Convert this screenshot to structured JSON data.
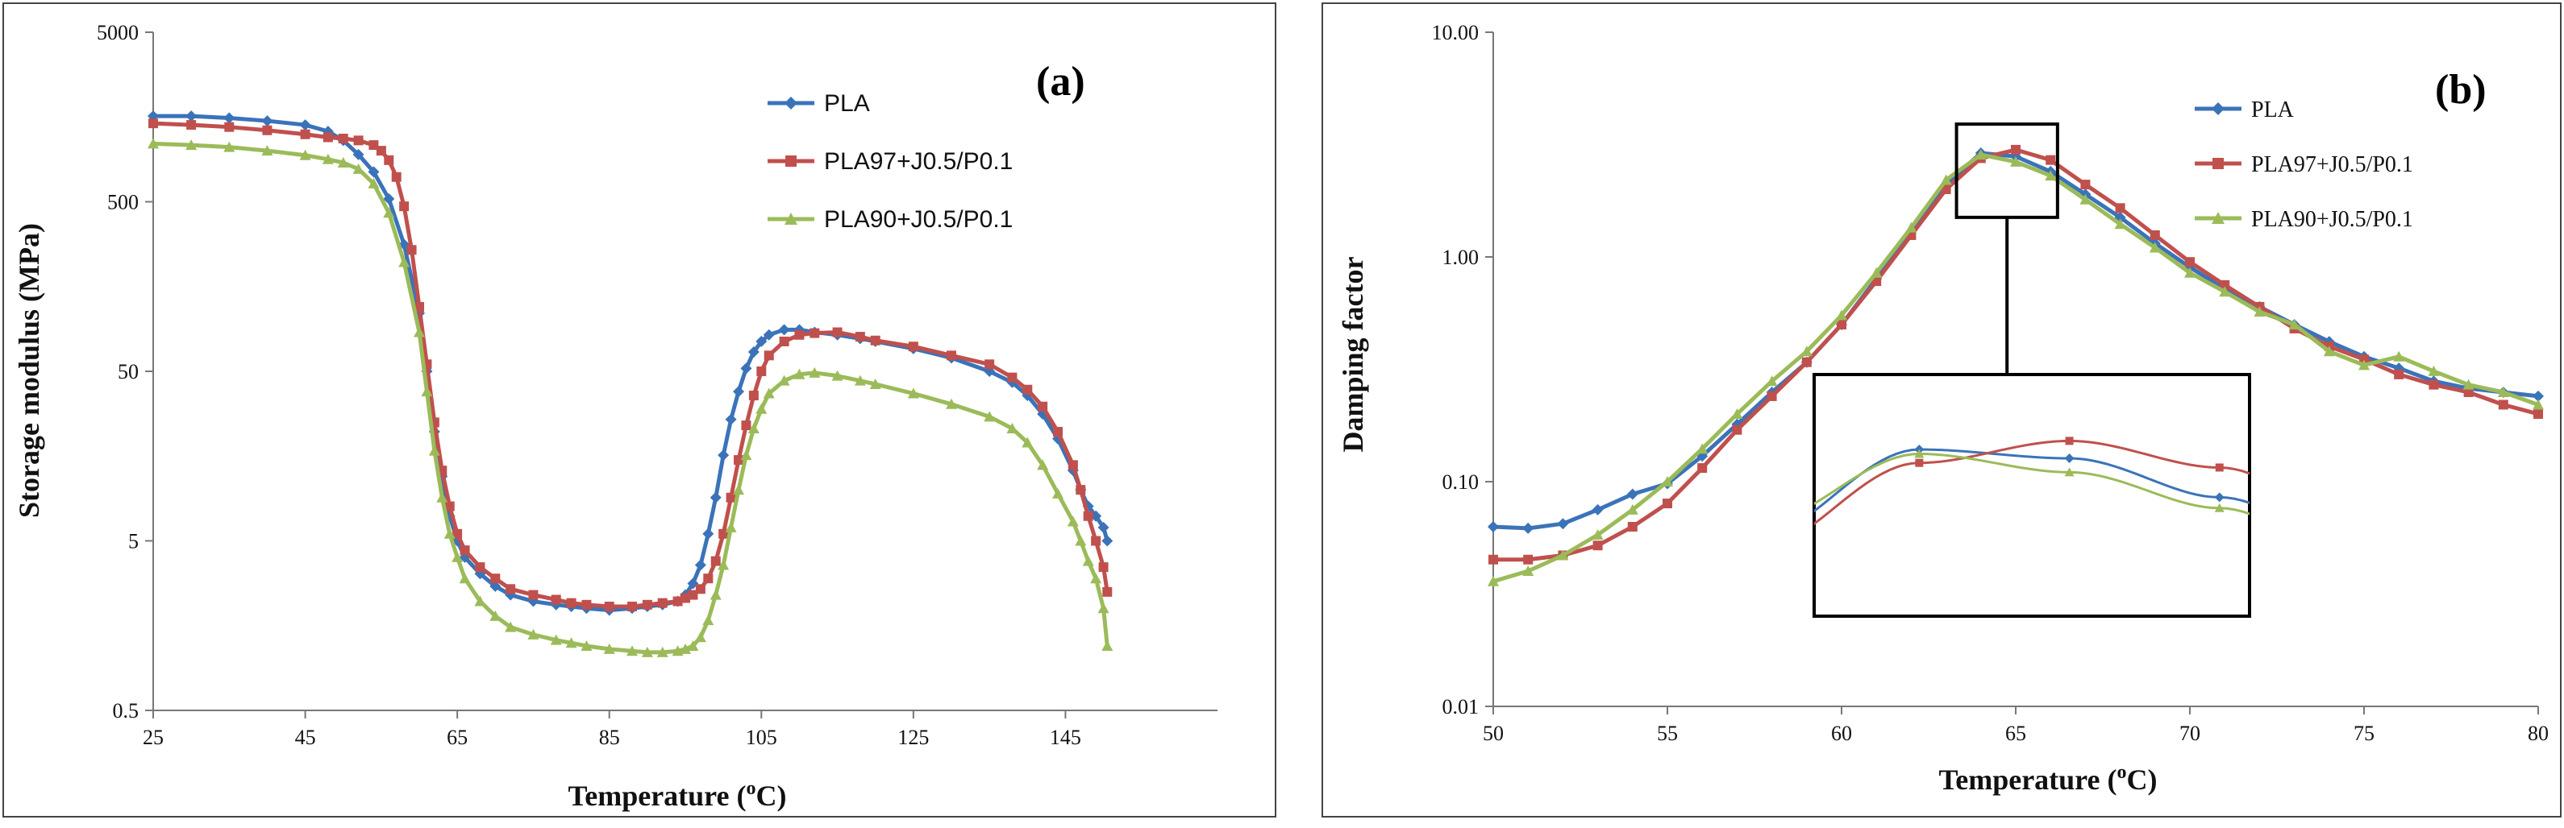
{
  "chart_data": [
    {
      "type": "line",
      "panel": "(a)",
      "xlabel": "Temperature (oC)",
      "xlabel_parts": {
        "pre": "Temperature  (",
        "sup": "o",
        "post": "C)"
      },
      "ylabel": "Storage modulus (MPa)",
      "yscale": "log",
      "xlim": [
        25,
        165
      ],
      "ylim": [
        0.5,
        5000
      ],
      "xticks": [
        25,
        45,
        65,
        85,
        105,
        125,
        145
      ],
      "yticks": [
        0.5,
        5,
        50,
        500,
        5000
      ],
      "ytick_labels": [
        "0.5",
        "5",
        "50",
        "500",
        "5000"
      ],
      "legend_position": "top-right",
      "series": [
        {
          "name": "PLA",
          "color": "#3B73B9",
          "marker": "diamond",
          "x": [
            25,
            30,
            35,
            40,
            45,
            48,
            50,
            52,
            54,
            56,
            58,
            60,
            61,
            62,
            63,
            64,
            65,
            66,
            68,
            70,
            72,
            75,
            78,
            80,
            82,
            85,
            88,
            90,
            92,
            94,
            95,
            96,
            97,
            98,
            99,
            100,
            101,
            102,
            103,
            104,
            105,
            106,
            108,
            110,
            112,
            115,
            118,
            120,
            125,
            130,
            135,
            138,
            140,
            142,
            144,
            146,
            147,
            148,
            149,
            150,
            150.5
          ],
          "y": [
            1600,
            1600,
            1560,
            1500,
            1420,
            1300,
            1150,
            950,
            750,
            520,
            280,
            110,
            50,
            22,
            12,
            7,
            5,
            4,
            3.2,
            2.7,
            2.4,
            2.2,
            2.1,
            2.05,
            2.0,
            1.95,
            2.0,
            2.05,
            2.1,
            2.2,
            2.4,
            2.8,
            3.6,
            5.5,
            9,
            16,
            26,
            38,
            52,
            65,
            75,
            82,
            88,
            88,
            85,
            82,
            78,
            75,
            68,
            60,
            50,
            43,
            36,
            28,
            20,
            13,
            10,
            8,
            7,
            6,
            5
          ]
        },
        {
          "name": "PLA97+J0.5/P0.1",
          "color": "#C0504D",
          "marker": "square",
          "x": [
            25,
            30,
            35,
            40,
            45,
            48,
            50,
            52,
            54,
            55,
            56,
            57,
            58,
            59,
            60,
            61,
            62,
            63,
            64,
            65,
            66,
            68,
            70,
            72,
            75,
            78,
            80,
            82,
            85,
            88,
            90,
            92,
            94,
            95,
            96,
            97,
            98,
            99,
            100,
            101,
            102,
            103,
            104,
            105,
            106,
            108,
            110,
            112,
            115,
            118,
            120,
            125,
            130,
            135,
            138,
            140,
            142,
            144,
            146,
            147,
            148,
            149,
            150,
            150.5
          ],
          "y": [
            1450,
            1420,
            1380,
            1320,
            1250,
            1200,
            1180,
            1150,
            1080,
            1000,
            880,
            700,
            470,
            260,
            120,
            55,
            25,
            13,
            8,
            5.5,
            4.4,
            3.5,
            3.0,
            2.6,
            2.4,
            2.25,
            2.15,
            2.1,
            2.05,
            2.05,
            2.1,
            2.15,
            2.2,
            2.3,
            2.4,
            2.6,
            3.0,
            3.8,
            5.5,
            9,
            15,
            24,
            36,
            50,
            62,
            75,
            82,
            84,
            85,
            80,
            76,
            70,
            62,
            55,
            46,
            39,
            31,
            22,
            14,
            10,
            7,
            5,
            3.5,
            2.5
          ]
        },
        {
          "name": "PLA90+J0.5/P0.1",
          "color": "#9BBB59",
          "marker": "triangle",
          "x": [
            25,
            30,
            35,
            40,
            45,
            48,
            50,
            52,
            54,
            56,
            58,
            60,
            61,
            62,
            63,
            64,
            65,
            66,
            68,
            70,
            72,
            75,
            78,
            80,
            82,
            85,
            88,
            90,
            92,
            94,
            95,
            96,
            97,
            98,
            99,
            100,
            101,
            102,
            103,
            104,
            105,
            106,
            108,
            110,
            112,
            115,
            118,
            120,
            125,
            130,
            135,
            138,
            140,
            142,
            144,
            146,
            147,
            148,
            149,
            150,
            150.5
          ],
          "y": [
            1100,
            1080,
            1050,
            1000,
            940,
            890,
            850,
            780,
            640,
            430,
            220,
            85,
            38,
            17,
            9,
            5.5,
            4,
            3,
            2.2,
            1.8,
            1.55,
            1.4,
            1.3,
            1.25,
            1.2,
            1.15,
            1.12,
            1.1,
            1.1,
            1.12,
            1.15,
            1.2,
            1.35,
            1.7,
            2.4,
            3.6,
            6,
            10,
            16,
            23,
            30,
            37,
            44,
            48,
            49,
            47,
            44,
            42,
            37,
            32,
            27,
            23,
            19,
            14,
            9.5,
            6.5,
            5,
            3.8,
            3,
            2,
            1.2
          ]
        }
      ]
    },
    {
      "type": "line",
      "panel": "(b)",
      "xlabel": "Temperature (oC)",
      "xlabel_parts": {
        "pre": "Temperature  (",
        "sup": "o",
        "post": "C)"
      },
      "ylabel": "Damping factor",
      "yscale": "log",
      "xlim": [
        50,
        80
      ],
      "ylim": [
        0.01,
        10
      ],
      "xticks": [
        50,
        55,
        60,
        65,
        70,
        75,
        80
      ],
      "yticks": [
        0.01,
        0.1,
        1,
        10
      ],
      "ytick_labels": [
        "0.01",
        "0.10",
        "1.00",
        "10.00"
      ],
      "legend_position": "top-right",
      "inset": "zoom of peak region (63.3–66.2 °C)",
      "series": [
        {
          "name": "PLA",
          "color": "#3B73B9",
          "marker": "diamond",
          "x": [
            50,
            51,
            52,
            53,
            54,
            55,
            56,
            57,
            58,
            59,
            60,
            61,
            62,
            63,
            64,
            65,
            66,
            67,
            68,
            69,
            70,
            71,
            72,
            73,
            74,
            75,
            76,
            77,
            78,
            79,
            80
          ],
          "y": [
            0.063,
            0.062,
            0.065,
            0.075,
            0.088,
            0.098,
            0.13,
            0.18,
            0.25,
            0.34,
            0.5,
            0.8,
            1.3,
            2.1,
            2.9,
            2.8,
            2.4,
            1.9,
            1.5,
            1.15,
            0.9,
            0.72,
            0.6,
            0.5,
            0.42,
            0.36,
            0.32,
            0.28,
            0.26,
            0.25,
            0.24
          ]
        },
        {
          "name": "PLA97+J0.5/P0.1",
          "color": "#C0504D",
          "marker": "square",
          "x": [
            50,
            51,
            52,
            53,
            54,
            55,
            56,
            57,
            58,
            59,
            60,
            61,
            62,
            63,
            64,
            65,
            66,
            67,
            68,
            69,
            70,
            71,
            72,
            73,
            74,
            75,
            76,
            77,
            78,
            79,
            80
          ],
          "y": [
            0.045,
            0.045,
            0.047,
            0.052,
            0.063,
            0.08,
            0.115,
            0.17,
            0.24,
            0.34,
            0.5,
            0.78,
            1.25,
            2.0,
            2.75,
            3.0,
            2.7,
            2.1,
            1.65,
            1.25,
            0.95,
            0.75,
            0.6,
            0.48,
            0.4,
            0.35,
            0.3,
            0.27,
            0.25,
            0.22,
            0.2
          ]
        },
        {
          "name": "PLA90+J0.5/P0.1",
          "color": "#9BBB59",
          "marker": "triangle",
          "x": [
            50,
            51,
            52,
            53,
            54,
            55,
            56,
            57,
            58,
            59,
            60,
            61,
            62,
            63,
            64,
            65,
            66,
            67,
            68,
            69,
            70,
            71,
            72,
            73,
            74,
            75,
            76,
            77,
            78,
            79,
            80
          ],
          "y": [
            0.036,
            0.04,
            0.047,
            0.058,
            0.075,
            0.1,
            0.14,
            0.2,
            0.28,
            0.38,
            0.55,
            0.85,
            1.35,
            2.2,
            2.85,
            2.65,
            2.3,
            1.8,
            1.4,
            1.1,
            0.85,
            0.7,
            0.57,
            0.5,
            0.38,
            0.33,
            0.36,
            0.31,
            0.27,
            0.25,
            0.22
          ]
        }
      ]
    }
  ]
}
